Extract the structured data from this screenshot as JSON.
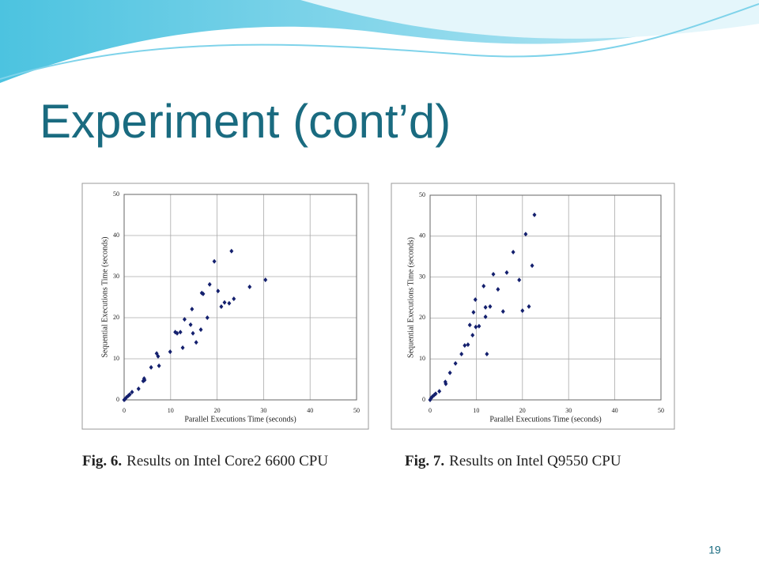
{
  "title": "Experiment (cont’d)",
  "page_number": "19",
  "chart_data": [
    {
      "type": "scatter",
      "caption_label": "Fig. 6.",
      "caption": "Results on Intel Core2 6600 CPU",
      "xlabel": "Parallel Executions Time (seconds)",
      "ylabel": "Sequential Executions Time (seconds)",
      "xlim": [
        0,
        50
      ],
      "ylim": [
        0,
        50
      ],
      "xticks": [
        0,
        10,
        20,
        30,
        40,
        50
      ],
      "yticks": [
        0,
        10,
        20,
        30,
        40,
        50
      ],
      "grid": true,
      "color": "#14206e",
      "x": [
        0,
        0.2,
        0.5,
        0.9,
        1.2,
        1.7,
        3.1,
        4.1,
        4.3,
        4.4,
        5.8,
        7,
        7.3,
        7.5,
        9.9,
        11,
        11.4,
        12.1,
        12.6,
        13,
        14.3,
        14.6,
        14.8,
        15.5,
        16.5,
        16.7,
        17,
        17.9,
        18.4,
        19.4,
        20.2,
        20.9,
        21.6,
        22.6,
        23.1,
        23.6,
        27,
        30.4
      ],
      "values": [
        0,
        0.2,
        0.6,
        1,
        1.3,
        1.9,
        2.7,
        4.6,
        5.2,
        4.8,
        7.9,
        11.3,
        10.6,
        8.3,
        11.7,
        16.5,
        16.2,
        16.5,
        12.7,
        19.6,
        18.3,
        22.1,
        16.2,
        14,
        17.1,
        26,
        25.8,
        20,
        28.1,
        33.7,
        26.5,
        22.7,
        23.7,
        23.5,
        36.2,
        24.6,
        27.5,
        29.2
      ]
    },
    {
      "type": "scatter",
      "caption_label": "Fig. 7.",
      "caption": "Results on Intel Q9550 CPU",
      "xlabel": "Parallel Executions Time (seconds)",
      "ylabel": "Sequential Executions Time (seconds)",
      "xlim": [
        0,
        50
      ],
      "ylim": [
        0,
        50
      ],
      "xticks": [
        0,
        10,
        20,
        30,
        40,
        50
      ],
      "yticks": [
        0,
        10,
        20,
        30,
        40,
        50
      ],
      "grid": true,
      "color": "#14206e",
      "x": [
        0,
        0.2,
        0.5,
        0.9,
        1.2,
        2,
        3.3,
        3.4,
        4.3,
        5.5,
        6.8,
        7.5,
        8.2,
        8.6,
        9.2,
        9.4,
        9.8,
        9.9,
        10.6,
        11.6,
        12,
        12,
        12.3,
        13,
        13.7,
        14.7,
        15.8,
        16.6,
        18,
        19.3,
        20,
        20.7,
        21.4,
        22.1,
        22.6
      ],
      "values": [
        0,
        0.4,
        0.8,
        1.2,
        1.5,
        2.1,
        4.4,
        3.9,
        6.6,
        8.9,
        11.2,
        13.3,
        13.5,
        18.3,
        15.8,
        21.4,
        24.5,
        17.8,
        18,
        27.8,
        20.3,
        22.6,
        11.2,
        22.8,
        30.7,
        27,
        21.6,
        31.1,
        36.1,
        29.3,
        21.8,
        40.5,
        22.8,
        32.8,
        45.2
      ]
    }
  ]
}
